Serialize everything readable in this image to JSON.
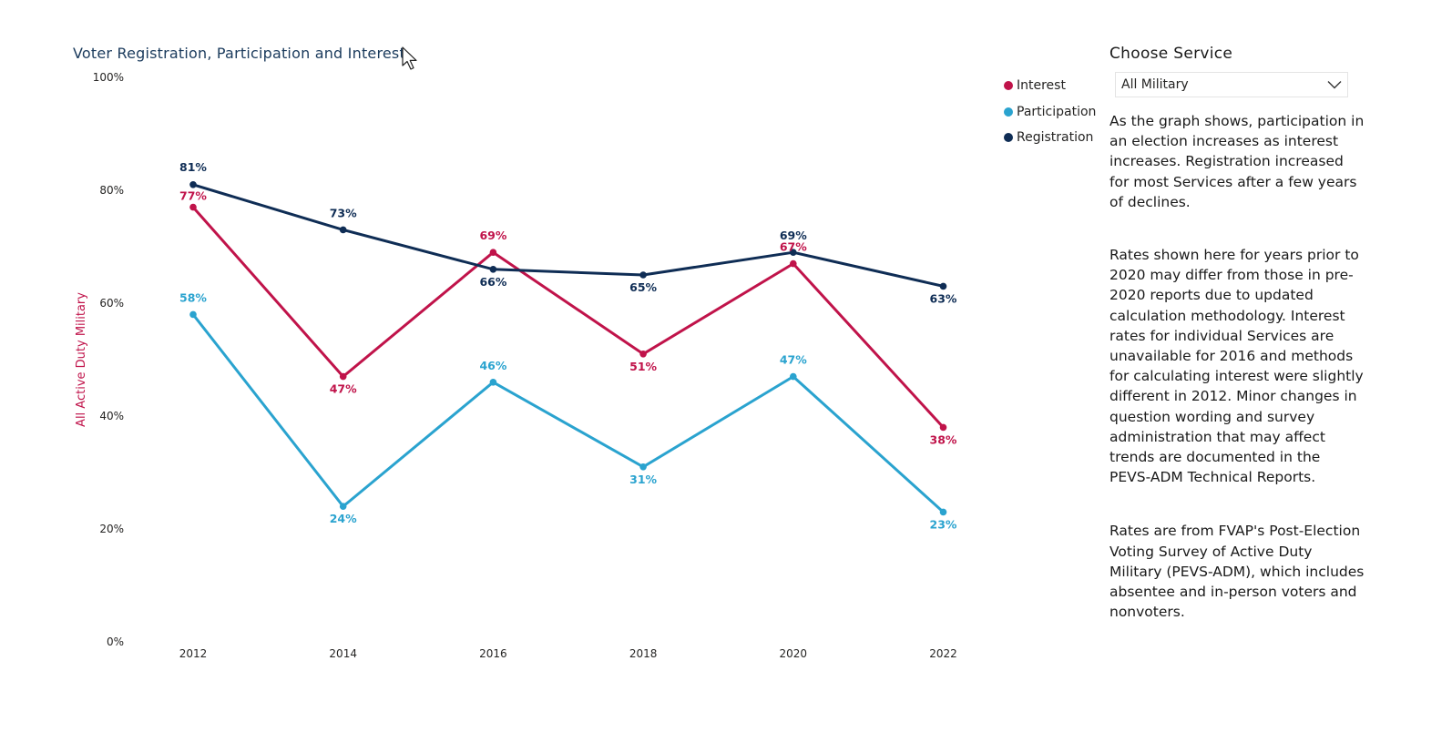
{
  "chart_data": {
    "type": "line",
    "title": "Voter Registration, Participation and Interest",
    "categories": [
      "2012",
      "2014",
      "2016",
      "2018",
      "2020",
      "2022"
    ],
    "ylabel": "All Active Duty Military",
    "xlabel": "",
    "ylim": [
      0,
      100
    ],
    "yticks": [
      "0%",
      "20%",
      "40%",
      "60%",
      "80%",
      "100%"
    ],
    "series": [
      {
        "name": "Interest",
        "color": "#c0134a",
        "values": [
          77,
          47,
          69,
          51,
          67,
          38
        ],
        "labels": [
          "77%",
          "47%",
          "69%",
          "51%",
          "67%",
          "38%"
        ]
      },
      {
        "name": "Participation",
        "color": "#2aa3cf",
        "values": [
          58,
          24,
          46,
          31,
          47,
          23
        ],
        "labels": [
          "58%",
          "24%",
          "46%",
          "31%",
          "47%",
          "23%"
        ]
      },
      {
        "name": "Registration",
        "color": "#0f2d55",
        "values": [
          81,
          73,
          66,
          65,
          69,
          63
        ],
        "labels": [
          "81%",
          "73%",
          "66%",
          "65%",
          "69%",
          "63%"
        ]
      }
    ]
  },
  "legend": {
    "items": [
      {
        "label": "Interest",
        "color": "#c0134a"
      },
      {
        "label": "Participation",
        "color": "#2aa3cf"
      },
      {
        "label": "Registration",
        "color": "#0f2d55"
      }
    ]
  },
  "sidebar": {
    "title": "Choose Service",
    "dropdown_value": "All Military",
    "paragraphs": [
      "As the graph shows, participation in an election increases as interest increases. Registration increased for most Services after a few years of declines.",
      "Rates shown here for years prior to 2020 may differ from those in pre-2020 reports due to updated calculation methodology. Interest rates for individual Services are unavailable for 2016 and methods for calculating interest were slightly different in 2012. Minor changes in question wording and survey administration that may affect trends are documented in the PEVS-ADM Technical Reports.",
      "Rates are from FVAP's Post-Election Voting Survey of Active Duty Military (PEVS-ADM), which includes absentee and in-person voters and nonvoters."
    ]
  }
}
